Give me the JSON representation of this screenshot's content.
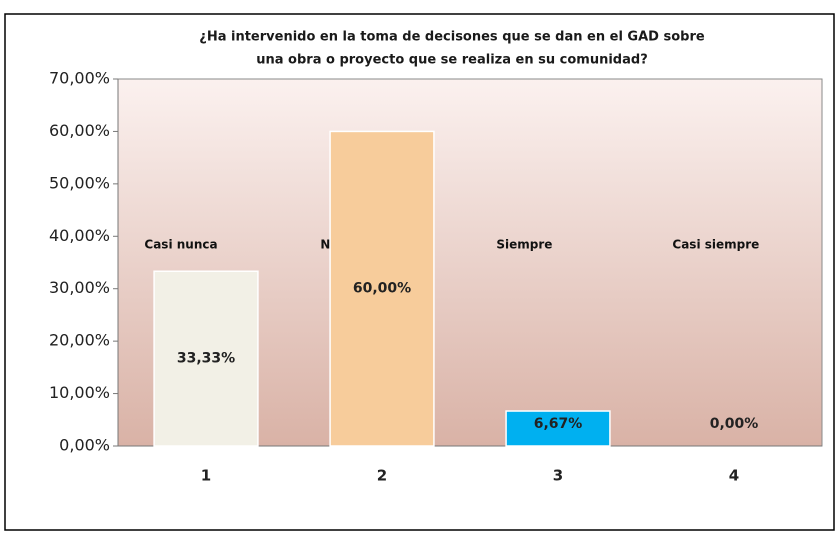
{
  "chart_data": {
    "type": "bar",
    "title": [
      "¿Ha intervenido en la toma de decisones que se dan en el GAD sobre",
      "una obra o proyecto que se realiza en su comunidad?"
    ],
    "categories": [
      "1",
      "2",
      "3",
      "4"
    ],
    "bar_labels": [
      "Casi nunca",
      "Nunca",
      "Siempre",
      "Casi siempre"
    ],
    "values": [
      33.33,
      60,
      6.67,
      0
    ],
    "value_labels": [
      "33,33%",
      "60,00%",
      "6,67%",
      "0,00%"
    ],
    "colors": [
      "#f2f0e6",
      "#f7cc9b",
      "#00b0f0",
      "#c9a99f"
    ],
    "ylim": [
      0,
      70
    ],
    "yticks": [
      {
        "value": 0,
        "label": "0,00%"
      },
      {
        "value": 10,
        "label": "10,00%"
      },
      {
        "value": 20,
        "label": "20,00%"
      },
      {
        "value": 30,
        "label": "30,00%"
      },
      {
        "value": 40,
        "label": "40,00%"
      },
      {
        "value": 50,
        "label": "50,00%"
      },
      {
        "value": 60,
        "label": "60,00%"
      },
      {
        "value": 70,
        "label": "70,00%"
      }
    ],
    "grid": false
  }
}
